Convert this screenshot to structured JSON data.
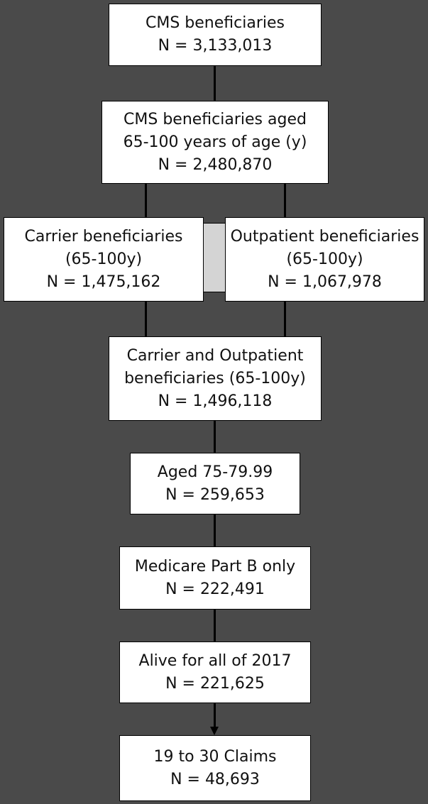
{
  "boxes": {
    "cms": {
      "line1": "CMS beneficiaries",
      "line2": "N = 3,133,013"
    },
    "aged": {
      "line1": "CMS beneficiaries aged",
      "line2": "65-100 years of age (y)",
      "line3": "N = 2,480,870"
    },
    "carrier": {
      "line1": "Carrier beneficiaries",
      "line2": "(65-100y)",
      "line3": "N = 1,475,162"
    },
    "outpatient": {
      "line1": "Outpatient beneficiaries",
      "line2": "(65-100y)",
      "line3": "N = 1,067,978"
    },
    "combined": {
      "line1": "Carrier and Outpatient",
      "line2": "beneficiaries (65-100y)",
      "line3": "N = 1,496,118"
    },
    "aged75": {
      "line1": "Aged 75-79.99",
      "line2": "N = 259,653"
    },
    "partb": {
      "line1": "Medicare Part B only",
      "line2": "N = 222,491"
    },
    "alive": {
      "line1": "Alive for all of 2017",
      "line2": "N = 221,625"
    },
    "claims": {
      "line1": "19 to 30 Claims",
      "line2": "N = 48,693"
    }
  }
}
